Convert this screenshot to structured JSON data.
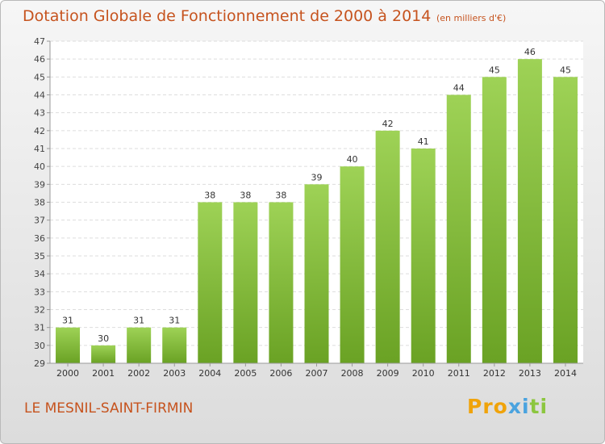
{
  "header": {
    "title": "Dotation Globale de Fonctionnement de 2000 à 2014",
    "subtitle": "(en milliers d'€)"
  },
  "footer": {
    "commune": "LE MESNIL-SAINT-FIRMIN",
    "logo_text": "Proxiti",
    "logo_colors": [
      "#f0a30a",
      "#4aa3df",
      "#8cc63f"
    ]
  },
  "chart_data": {
    "type": "bar",
    "title": "Dotation Globale de Fonctionnement de 2000 à 2014",
    "subtitle": "(en milliers d'€)",
    "xlabel": "",
    "ylabel": "",
    "categories": [
      "2000",
      "2001",
      "2002",
      "2003",
      "2004",
      "2005",
      "2006",
      "2007",
      "2008",
      "2009",
      "2010",
      "2011",
      "2012",
      "2013",
      "2014"
    ],
    "values": [
      31,
      30,
      31,
      31,
      38,
      38,
      38,
      39,
      40,
      42,
      41,
      44,
      45,
      46,
      45
    ],
    "ylim": [
      29,
      47
    ],
    "yticks": [
      29,
      30,
      31,
      32,
      33,
      34,
      35,
      36,
      37,
      38,
      39,
      40,
      41,
      42,
      43,
      44,
      45,
      46,
      47
    ],
    "grid": true,
    "bar_color_top": "#9ed256",
    "bar_color_bottom": "#6aa224"
  }
}
